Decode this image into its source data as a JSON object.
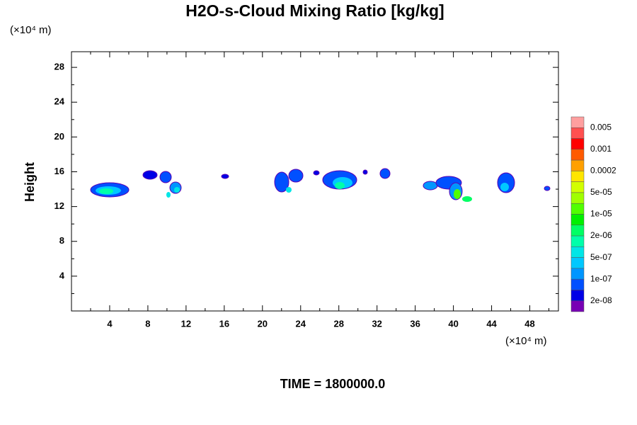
{
  "chart_data": {
    "type": "contour",
    "title": "H2O-s-Cloud Mixing Ratio [kg/kg]",
    "y_unit": "(×10⁴ m)",
    "x_unit": "(×10⁴ m)",
    "ylabel": "Height",
    "footer": "TIME = 1800000.0",
    "xlim": [
      0,
      51
    ],
    "ylim": [
      0,
      29.8
    ],
    "xticks": [
      4,
      8,
      12,
      16,
      20,
      24,
      28,
      32,
      36,
      40,
      44,
      48
    ],
    "yticks": [
      4,
      8,
      12,
      16,
      20,
      24,
      28
    ],
    "xminor": [
      2,
      6,
      10,
      14,
      18,
      22,
      26,
      30,
      34,
      38,
      42,
      46,
      50
    ],
    "yminor": [
      2,
      6,
      10,
      14,
      18,
      22,
      26
    ],
    "colorbar": {
      "colors": [
        "#ff9f9f",
        "#ff5050",
        "#ff0000",
        "#ff5a00",
        "#ffa000",
        "#ffe600",
        "#d2ff00",
        "#a0ff00",
        "#50ff00",
        "#00f000",
        "#00ff64",
        "#00ffaa",
        "#00e6e6",
        "#00c8ff",
        "#0096ff",
        "#0050ff",
        "#0000e6",
        "#7800b4"
      ],
      "levels": [
        0.005,
        0.001,
        0.0002,
        {
          "value": 5e-05,
          "label": "5e-05"
        },
        {
          "value": 1e-05,
          "label": "1e-05"
        },
        {
          "value": 2e-06,
          "label": "2e-06"
        },
        {
          "value": 5e-07,
          "label": "5e-07"
        },
        {
          "value": 1e-07,
          "label": "1e-07"
        },
        {
          "value": 2e-08,
          "label": "2e-08"
        }
      ]
    }
  }
}
